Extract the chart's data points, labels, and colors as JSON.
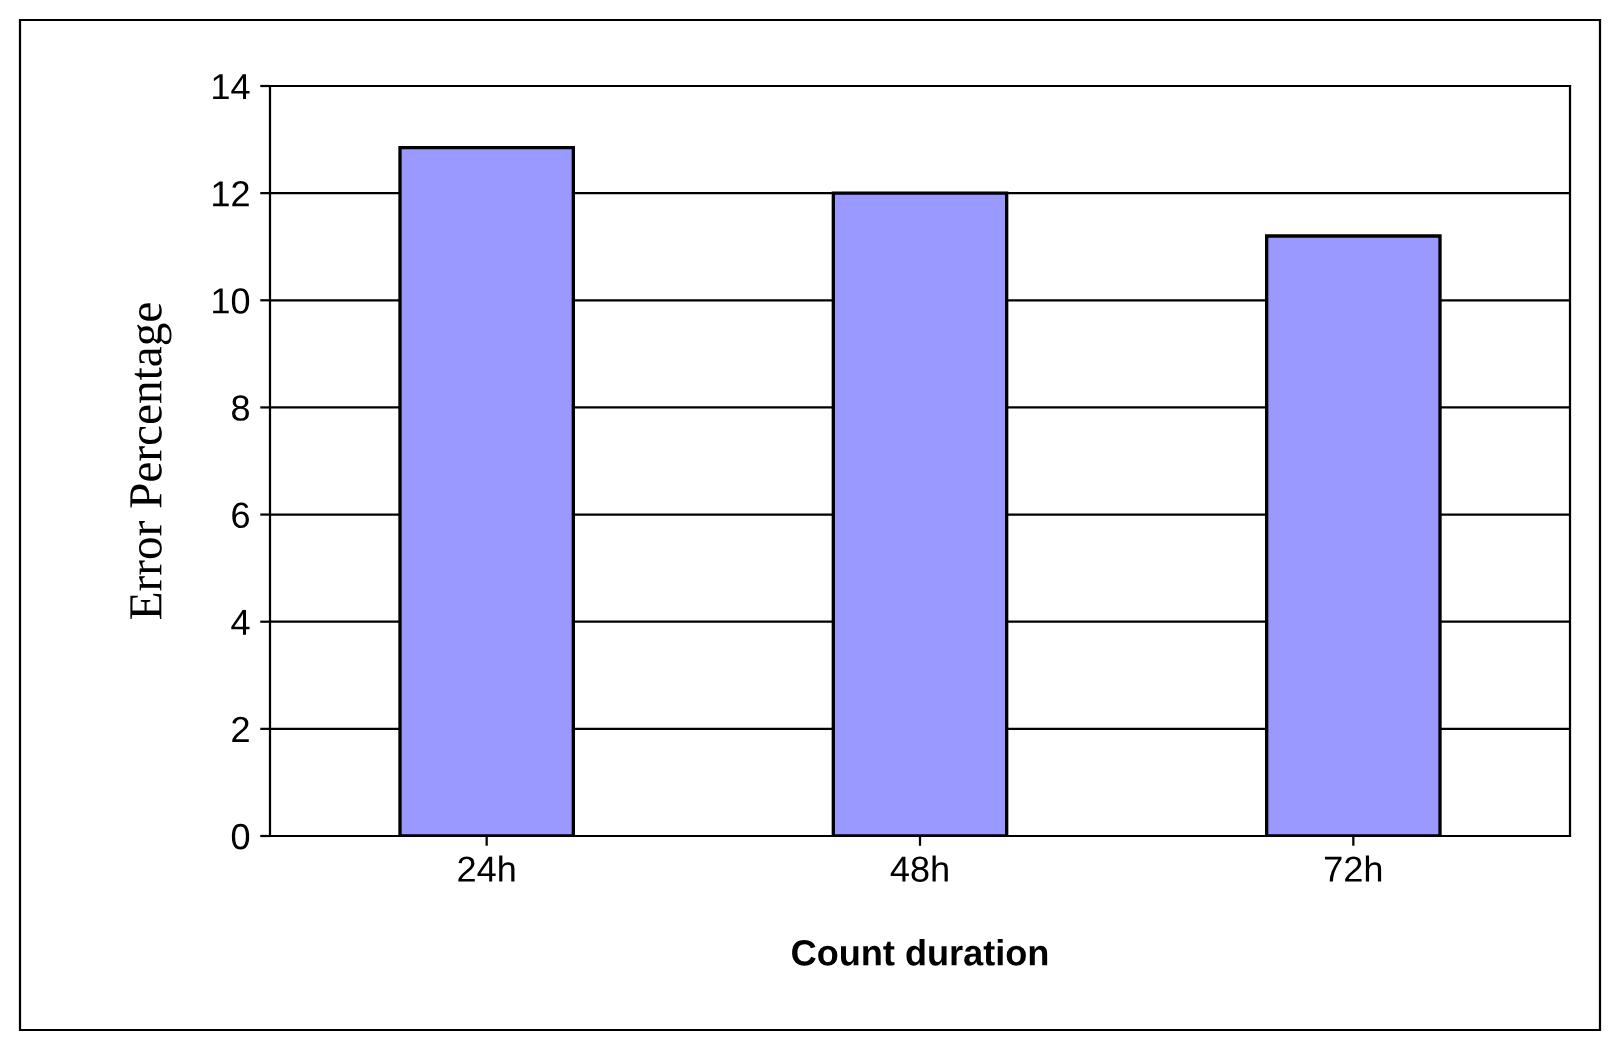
{
  "chart_data": {
    "type": "bar",
    "xlabel": "Count duration",
    "ylabel": "Error Percentage",
    "categories": [
      "24h",
      "48h",
      "72h"
    ],
    "values": [
      12.85,
      12.0,
      11.2
    ],
    "color": "#9999ff",
    "ylim": [
      0,
      14
    ],
    "yticks": [
      0,
      2,
      4,
      6,
      8,
      10,
      12,
      14
    ],
    "grid": "y"
  }
}
